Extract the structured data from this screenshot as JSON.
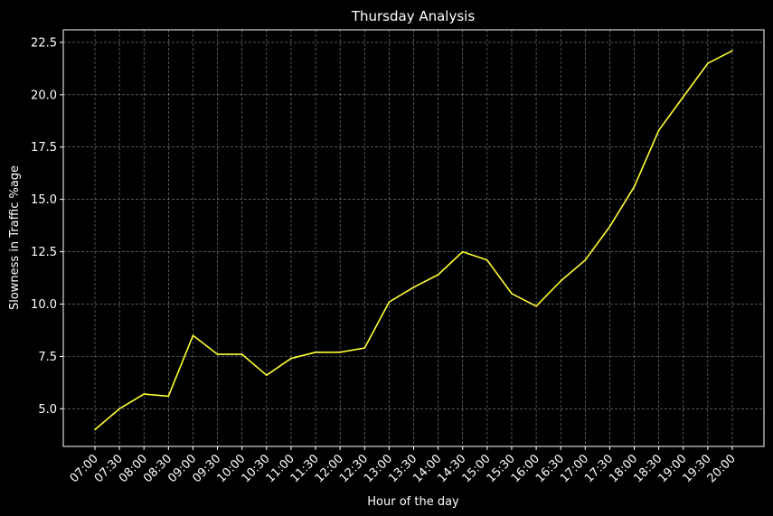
{
  "chart_data": {
    "type": "line",
    "title": "Thursday Analysis",
    "xlabel": "Hour of the day",
    "ylabel": "Slowness in Traffic %age",
    "ylim": [
      3.2,
      23.1
    ],
    "yticks": [
      "5.0",
      "7.5",
      "10.0",
      "12.5",
      "15.0",
      "17.5",
      "20.0",
      "22.5"
    ],
    "grid": true,
    "line_color": "#ffff33",
    "categories": [
      "07:00",
      "07:30",
      "08:00",
      "08:30",
      "09:00",
      "09:30",
      "10:00",
      "10:30",
      "11:00",
      "11:30",
      "12:00",
      "12:30",
      "13:00",
      "13:30",
      "14:00",
      "14:30",
      "15:00",
      "15:30",
      "16:00",
      "16:30",
      "17:00",
      "17:30",
      "18:00",
      "18:30",
      "19:00",
      "19:30",
      "20:00"
    ],
    "series": [
      {
        "values": [
          4.0,
          5.0,
          5.7,
          5.6,
          8.5,
          7.6,
          7.6,
          6.6,
          7.4,
          7.7,
          7.7,
          7.9,
          10.1,
          10.8,
          11.4,
          12.5,
          12.1,
          10.5,
          9.9,
          11.1,
          12.1,
          13.7,
          15.6,
          18.3,
          19.9,
          21.5,
          22.1
        ]
      }
    ]
  }
}
